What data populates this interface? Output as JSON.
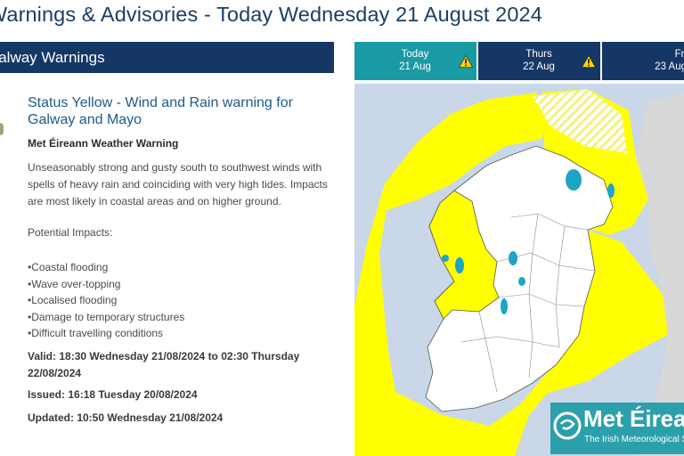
{
  "page": {
    "title": "Warnings & Advisories - Today Wednesday 21 August 2024"
  },
  "panel": {
    "header": "Galway Warnings"
  },
  "warning": {
    "heading": "Status Yellow - Wind and Rain warning for Galway and Mayo",
    "issuer": "Met Éireann Weather Warning",
    "description": "Unseasonably strong and gusty south to southwest winds with spells of heavy rain and coinciding with very high tides. Impacts are most likely in coastal areas and on higher ground.",
    "impacts_label": "Potential Impacts:",
    "impacts": [
      "Coastal flooding",
      "Wave over-topping",
      "Localised flooding",
      "Damage to temporary structures",
      "Difficult travelling conditions"
    ],
    "valid": "Valid: 18:30 Wednesday 21/08/2024 to 02:30 Thursday 22/08/2024",
    "issued": "Issued: 16:18 Tuesday 20/08/2024",
    "updated": "Updated: 10:50 Wednesday 21/08/2024"
  },
  "tabs": [
    {
      "day": "Today",
      "date": "21 Aug",
      "warning_icon": "warning-triangle-icon",
      "warning_color": "#ffd400",
      "active": true
    },
    {
      "day": "Thurs",
      "date": "22 Aug",
      "warning_icon": "warning-triangle-icon",
      "warning_color": "#ffd400",
      "active": false
    },
    {
      "day": "Fri",
      "date": "23 Aug",
      "active": false
    }
  ],
  "map": {
    "warning_color": "#ffff00",
    "land_color": "#ffffff",
    "sea_color": "#c9d7e8"
  },
  "logo": {
    "name": "Met Éireann",
    "tagline": "The Irish Meteorological Service"
  },
  "colors": {
    "brand_navy": "#143766",
    "active_tab": "#1a9aa5",
    "heading_blue": "#1f5a8c"
  }
}
